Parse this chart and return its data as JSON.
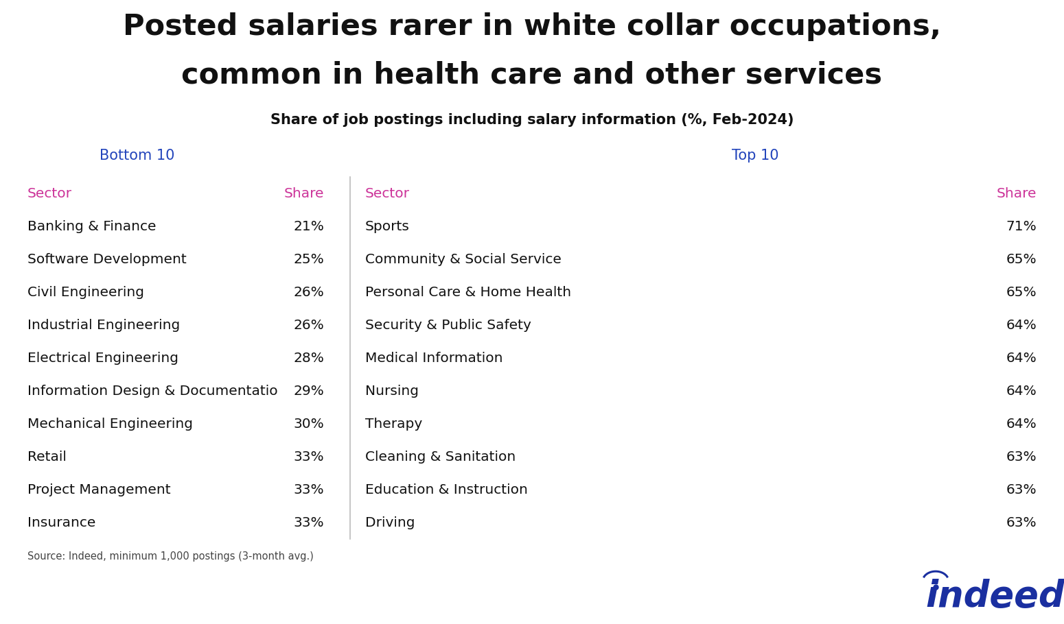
{
  "title_line1": "Posted salaries rarer in white collar occupations,",
  "title_line2": "common in health care and other services",
  "subtitle": "Share of job postings including salary information (%, Feb-2024)",
  "bottom10_label": "Bottom 10",
  "top10_label": "Top 10",
  "col_headers": [
    "Sector",
    "Share",
    "Sector",
    "Share"
  ],
  "bottom10": [
    [
      "Banking & Finance",
      "21%"
    ],
    [
      "Software Development",
      "25%"
    ],
    [
      "Civil Engineering",
      "26%"
    ],
    [
      "Industrial Engineering",
      "26%"
    ],
    [
      "Electrical Engineering",
      "28%"
    ],
    [
      "Information Design & Documentatio",
      "29%"
    ],
    [
      "Mechanical Engineering",
      "30%"
    ],
    [
      "Retail",
      "33%"
    ],
    [
      "Project Management",
      "33%"
    ],
    [
      "Insurance",
      "33%"
    ]
  ],
  "top10": [
    [
      "Sports",
      "71%"
    ],
    [
      "Community & Social Service",
      "65%"
    ],
    [
      "Personal Care & Home Health",
      "65%"
    ],
    [
      "Security & Public Safety",
      "64%"
    ],
    [
      "Medical Information",
      "64%"
    ],
    [
      "Nursing",
      "64%"
    ],
    [
      "Therapy",
      "64%"
    ],
    [
      "Cleaning & Sanitation",
      "63%"
    ],
    [
      "Education & Instruction",
      "63%"
    ],
    [
      "Driving",
      "63%"
    ]
  ],
  "source_text": "Source: Indeed, minimum 1,000 postings (3-month avg.)",
  "title_color": "#111111",
  "subtitle_color": "#111111",
  "header_color": "#cc3399",
  "bottom10_label_color": "#2244bb",
  "top10_label_color": "#2244bb",
  "row_bg_even": "#eeeeee",
  "row_bg_odd": "#ffffff",
  "text_color": "#111111",
  "indeed_color": "#1a2fa0",
  "background_color": "#ffffff",
  "source_color": "#444444",
  "divider_color": "#bbbbbb"
}
